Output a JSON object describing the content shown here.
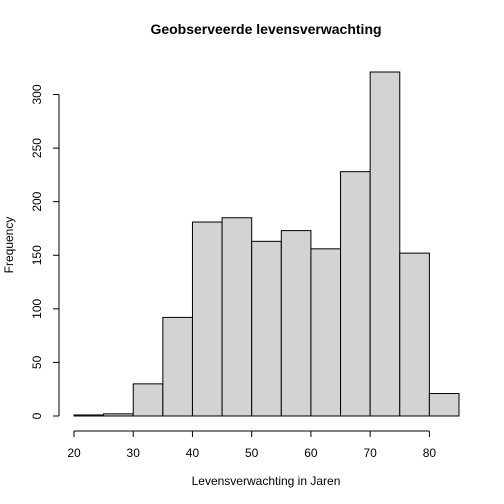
{
  "chart_data": {
    "type": "histogram",
    "title": "Geobserveerde levensverwachting",
    "xlabel": "Levensverwachting in Jaren",
    "ylabel": "Frequency",
    "bin_edges": [
      20,
      25,
      30,
      35,
      40,
      45,
      50,
      55,
      60,
      65,
      70,
      75,
      80,
      85
    ],
    "values": [
      1,
      2,
      30,
      92,
      181,
      185,
      163,
      173,
      156,
      228,
      321,
      152,
      21
    ],
    "xlim": [
      20,
      85
    ],
    "ylim": [
      0,
      321
    ],
    "x_ticks": [
      "20",
      "30",
      "40",
      "50",
      "60",
      "70",
      "80"
    ],
    "y_ticks": [
      "0",
      "50",
      "100",
      "150",
      "200",
      "250",
      "300"
    ],
    "grid": false,
    "bar_fill": "#d3d3d3",
    "bar_stroke": "#000000"
  }
}
